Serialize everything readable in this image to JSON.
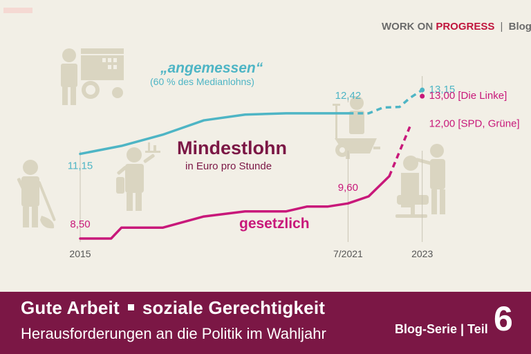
{
  "brand": {
    "work_on": "WORK ON",
    "progress": "PROGRESS",
    "separator": "|",
    "blog": "Blog"
  },
  "colors": {
    "angemessen": "#4eb5c5",
    "gesetzlich": "#c8187a",
    "title": "#7b1745",
    "icons": "#dad5c1",
    "banner": "#7b1745"
  },
  "icons": [
    "street-vendor-icon",
    "cleaner-icon",
    "waiter-icon",
    "gardener-icon",
    "hairdresser-icon"
  ],
  "chart_data": {
    "type": "line",
    "title": "Mindestlohn",
    "subtitle": "in Euro pro Stunde",
    "x_ticks": [
      "2015",
      "7/2021",
      "2023"
    ],
    "series": [
      {
        "name": "„angemessen“",
        "note": "(60 % des Medianlohns)",
        "color": "#4eb5c5",
        "points": [
          [
            2015.0,
            11.15
          ],
          [
            2016.0,
            11.4
          ],
          [
            2017.0,
            11.75
          ],
          [
            2018.0,
            12.2
          ],
          [
            2019.0,
            12.38
          ],
          [
            2020.0,
            12.42
          ],
          [
            2021.5,
            12.42
          ]
        ],
        "projected": [
          [
            2021.5,
            12.42
          ],
          [
            2022.0,
            12.42
          ],
          [
            2022.35,
            12.6
          ],
          [
            2022.75,
            12.62
          ],
          [
            2023.0,
            12.9
          ],
          [
            2023.3,
            13.15
          ]
        ]
      },
      {
        "name": "gesetzlich",
        "color": "#c8187a",
        "points": [
          [
            2015.0,
            8.5
          ],
          [
            2015.75,
            8.5
          ],
          [
            2016.0,
            8.84
          ],
          [
            2017.0,
            8.84
          ],
          [
            2018.0,
            9.19
          ],
          [
            2019.0,
            9.35
          ],
          [
            2020.0,
            9.35
          ],
          [
            2020.5,
            9.5
          ],
          [
            2021.0,
            9.5
          ],
          [
            2021.5,
            9.6
          ],
          [
            2022.0,
            9.82
          ],
          [
            2022.5,
            10.45
          ]
        ],
        "projected": [
          [
            2022.5,
            10.45
          ],
          [
            2023.0,
            12.0
          ]
        ]
      }
    ],
    "value_labels": [
      {
        "series": 0,
        "x": 2015.0,
        "y": 11.15,
        "text": "11,15"
      },
      {
        "series": 0,
        "x": 2021.5,
        "y": 12.42,
        "text": "12,42"
      },
      {
        "series": 0,
        "x": 2023.3,
        "y": 13.15,
        "text": "13,15"
      },
      {
        "series": 1,
        "x": 2015.0,
        "y": 8.5,
        "text": "8,50"
      },
      {
        "series": 1,
        "x": 2021.5,
        "y": 9.6,
        "text": "9,60"
      },
      {
        "series": 1,
        "x": 2023.3,
        "y": 13.0,
        "text": "13,00  [Die Linke]"
      },
      {
        "series": 1,
        "x": 2023.3,
        "y": 12.0,
        "text": "12,00  [SPD, Grüne]"
      }
    ]
  },
  "banner": {
    "part1": "Gute Arbeit",
    "part2": "soziale Gerechtigkeit",
    "subtitle": "Herausforderungen an die Politik im Wahljahr",
    "series_label": "Blog-Serie | Teil",
    "number": "6"
  }
}
